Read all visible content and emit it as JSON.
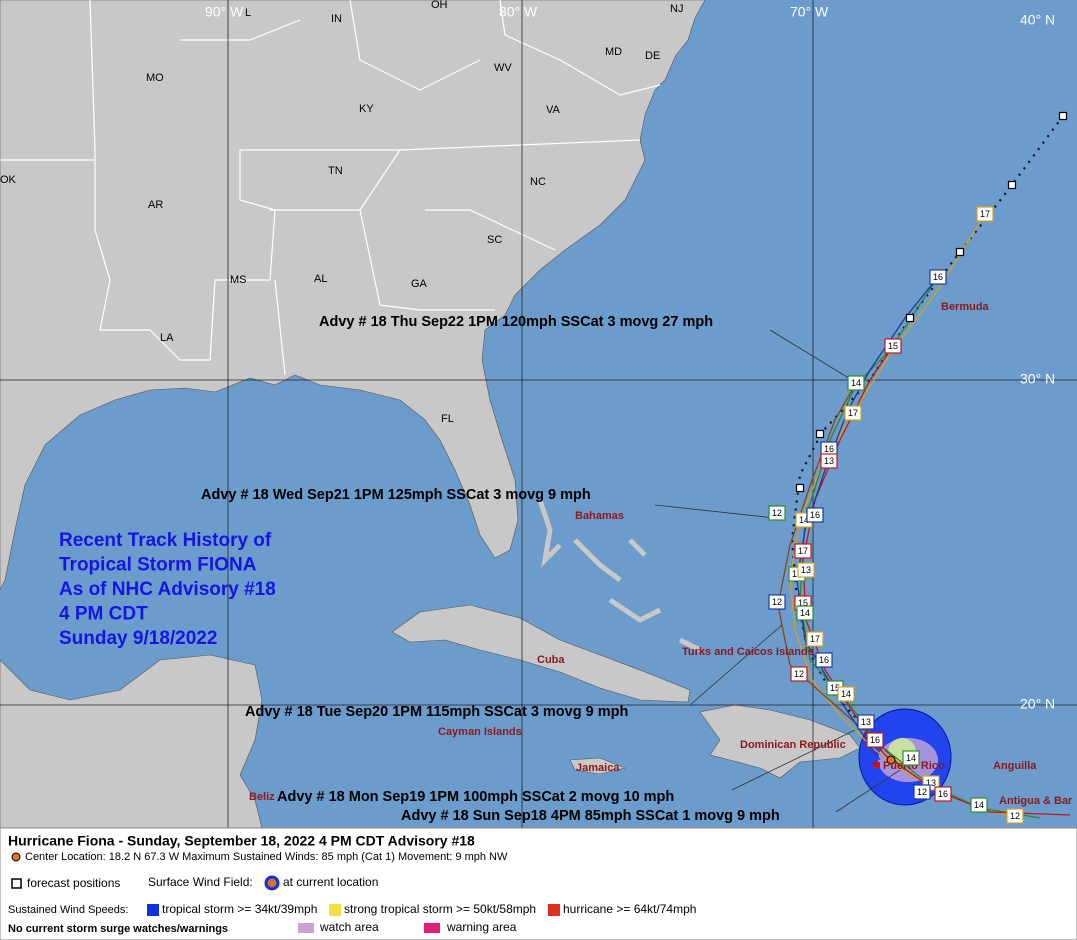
{
  "map": {
    "grid_labels": [
      "90° W",
      "80° W",
      "70° W",
      "40° N",
      "30° N",
      "20° N"
    ],
    "states": [
      "L",
      "IN",
      "OH",
      "NJ",
      "MO",
      "MD",
      "DE",
      "WV",
      "KY",
      "VA",
      "OK",
      "TN",
      "NC",
      "AR",
      "SC",
      "MS",
      "AL",
      "GA",
      "LA",
      "FL"
    ],
    "places": [
      "Bermuda",
      "Bahamas",
      "Turks and Caicos Islands",
      "Cuba",
      "Cayman Islands",
      "Dominican Republic",
      "Puerto Rico",
      "Jamaica",
      "Anguilla",
      "Antigua & Bar",
      "Beliz"
    ],
    "title_lines": [
      "Recent Track History of",
      "Tropical Storm FIONA",
      "As of NHC Advisory #18",
      "4 PM CDT",
      "Sunday 9/18/2022"
    ],
    "advisories": [
      "Advy # 18 Thu Sep22 1PM  120mph SSCat 3 movg 27 mph",
      "Advy # 18 Wed Sep21 1PM  125mph SSCat 3 movg 9 mph",
      "Advy # 18 Tue Sep20 1PM  115mph SSCat 3 movg 9 mph",
      "Advy # 18 Mon Sep19 1PM  100mph SSCat 2 movg 10 mph",
      "Advy # 18 Sun Sep18 4PM  85mph SSCat 1 movg 9 mph"
    ],
    "track_labels": [
      "17",
      "16",
      "15",
      "14",
      "17",
      "16",
      "13",
      "12",
      "14",
      "16",
      "17",
      "16",
      "13",
      "12",
      "15",
      "14",
      "17",
      "16",
      "12",
      "15",
      "14",
      "13",
      "16",
      "14",
      "13",
      "12",
      "16",
      "14",
      "12"
    ]
  },
  "footer": {
    "title": "Hurricane Fiona  -  Sunday, September 18, 2022  4 PM CDT   Advisory #18",
    "center": "Center Location: 18.2 N  67.3 W   Maximum Sustained Winds: 85 mph (Cat 1) Movement: 9 mph NW",
    "forecast": "forecast positions",
    "surface": "Surface Wind Field:",
    "current": "at current location",
    "sustained": "Sustained Wind Speeds:",
    "ts": "tropical storm >= 34kt/39mph",
    "sts": "strong tropical storm >= 50kt/58mph",
    "hu": "hurricane >= 64kt/74mph",
    "surge": "No current storm surge watches/warnings",
    "watch": "watch area",
    "warning": "warning area"
  }
}
